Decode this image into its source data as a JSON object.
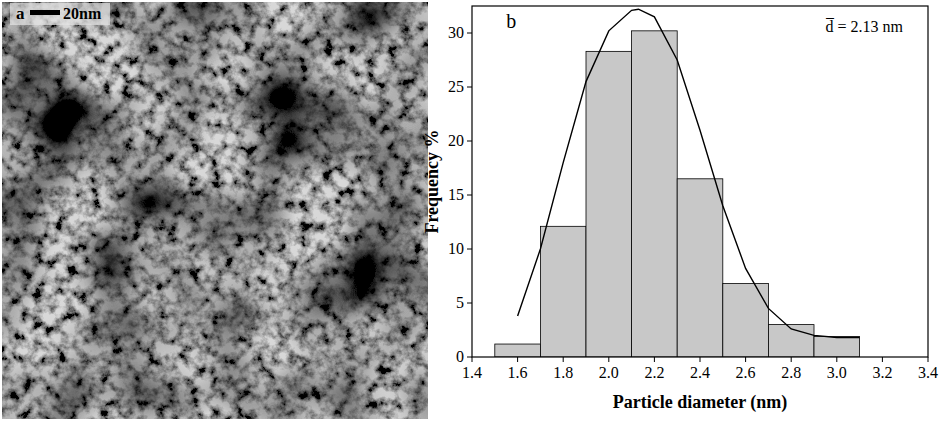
{
  "chart_data": {
    "type": "histogram",
    "bins": [
      1.5,
      1.7,
      1.9,
      2.1,
      2.3,
      2.5,
      2.7,
      2.9,
      3.1
    ],
    "values": [
      1.2,
      12.1,
      28.3,
      30.2,
      16.5,
      6.8,
      3.0,
      1.9
    ],
    "color": "#c8c8c8",
    "curve": {
      "type": "line",
      "color": "#000000",
      "x": [
        1.6,
        1.7,
        1.8,
        1.9,
        2.0,
        2.1,
        2.13,
        2.2,
        2.3,
        2.4,
        2.5,
        2.6,
        2.7,
        2.8,
        2.9,
        3.0,
        3.1
      ],
      "values": [
        3.8,
        10.0,
        18.0,
        25.5,
        30.2,
        32.1,
        32.2,
        31.5,
        27.5,
        21.0,
        14.0,
        8.2,
        4.5,
        2.6,
        2.0,
        1.8,
        1.8
      ]
    },
    "xlabel": "Particle diameter (nm)",
    "ylabel": "Frequency %",
    "xlim": [
      1.4,
      3.4
    ],
    "xticks": [
      1.4,
      1.6,
      1.8,
      {
        "value": 2,
        "label": "2.0"
      },
      2.2,
      2.4,
      2.6,
      2.8,
      {
        "value": 3,
        "label": "3.0"
      },
      3.2,
      3.4
    ],
    "ylim": [
      0,
      32.5
    ],
    "yticks": [
      0,
      5,
      10,
      15,
      20,
      25,
      30
    ],
    "grid": false,
    "annotations": [
      "b",
      "d̅ = 2.13 nm"
    ]
  },
  "micrograph": {
    "label": "a",
    "scale_bar": "20nm"
  }
}
